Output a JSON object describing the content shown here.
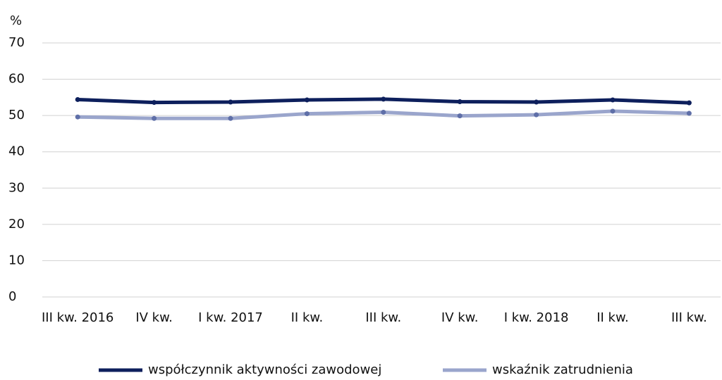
{
  "chart_data": {
    "type": "line",
    "y_label": "%",
    "categories": [
      "III kw. 2016",
      "IV kw.",
      "I kw. 2017",
      "II kw.",
      "III kw.",
      "IV kw.",
      "I kw. 2018",
      "II kw.",
      "III kw."
    ],
    "series": [
      {
        "name": "współczynnik aktywności zawodowej",
        "color": "#0d1f5c",
        "values": [
          54.4,
          53.6,
          53.7,
          54.3,
          54.5,
          53.8,
          53.7,
          54.3,
          53.5
        ]
      },
      {
        "name": "wskaźnik zatrudnienia",
        "color": "#9aa5cc",
        "values": [
          49.6,
          49.2,
          49.2,
          50.5,
          50.9,
          49.9,
          50.2,
          51.2,
          50.6
        ]
      }
    ],
    "ylim": [
      0,
      70
    ],
    "yticks": [
      0,
      10,
      20,
      30,
      40,
      50,
      60,
      70
    ],
    "grid": true,
    "legend": "bottom"
  }
}
